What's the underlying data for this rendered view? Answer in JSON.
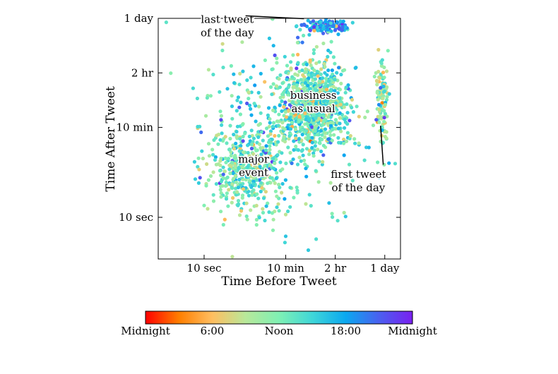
{
  "chart_data": {
    "type": "scatter",
    "title": "",
    "xlabel": "Time Before Tweet",
    "ylabel": "Time After Tweet",
    "x_scale": "log",
    "y_scale": "log",
    "xlim_seconds": [
      1,
      190000
    ],
    "ylim_seconds": [
      1.5,
      86400
    ],
    "x_ticks": [
      {
        "label": "10 sec",
        "seconds": 10
      },
      {
        "label": "10 min",
        "seconds": 600
      },
      {
        "label": "2 hr",
        "seconds": 7200
      },
      {
        "label": "1 day",
        "seconds": 86400
      }
    ],
    "y_ticks": [
      {
        "label": "10 sec",
        "seconds": 10
      },
      {
        "label": "10 min",
        "seconds": 600
      },
      {
        "label": "2 hr",
        "seconds": 7200
      },
      {
        "label": "1 day",
        "seconds": 86400
      }
    ],
    "grid": false,
    "colorbar": {
      "ticks": [
        "Midnight",
        "6:00",
        "Noon",
        "18:00",
        "Midnight"
      ],
      "colormap": [
        "#ff0000",
        "#ff7e00",
        "#ffbe60",
        "#b8e89a",
        "#7ff0b4",
        "#3fd6d8",
        "#0ba8f0",
        "#4a60f0",
        "#7a20f0"
      ]
    },
    "annotations": [
      {
        "lines": [
          "last tweet",
          "of the day"
        ],
        "x_seconds": 32,
        "y_seconds": 70000
      },
      {
        "lines": [
          "business",
          "as usual"
        ],
        "x_seconds": 2400,
        "y_seconds": 2200
      },
      {
        "lines": [
          "major",
          "event"
        ],
        "x_seconds": 120,
        "y_seconds": 120
      },
      {
        "lines": [
          "first tweet",
          "of the day"
        ],
        "x_seconds": 23000,
        "y_seconds": 60
      }
    ],
    "clusters": [
      {
        "name_hint": "major event",
        "center_seconds": [
          80,
          90
        ],
        "spread_decades": [
          0.45,
          0.45
        ],
        "count": 420,
        "hue_bias": 0.5
      },
      {
        "name_hint": "business as usual",
        "center_seconds": [
          2400,
          1800
        ],
        "spread_decades": [
          0.35,
          0.4
        ],
        "count": 750,
        "hue_bias": 0.52
      },
      {
        "name_hint": "last tweet of the day",
        "center_seconds": [
          4500,
          60000
        ],
        "spread_decades": [
          0.25,
          0.05
        ],
        "count": 150,
        "hue_bias": 0.75
      },
      {
        "name_hint": "first tweet of the day",
        "center_seconds": [
          75000,
          2000
        ],
        "spread_decades": [
          0.06,
          0.4
        ],
        "count": 110,
        "hue_bias": 0.45
      },
      {
        "name_hint": "scattered",
        "center_seconds": [
          600,
          600
        ],
        "spread_decades": [
          0.9,
          0.9
        ],
        "count": 380,
        "hue_bias": 0.55
      }
    ]
  }
}
